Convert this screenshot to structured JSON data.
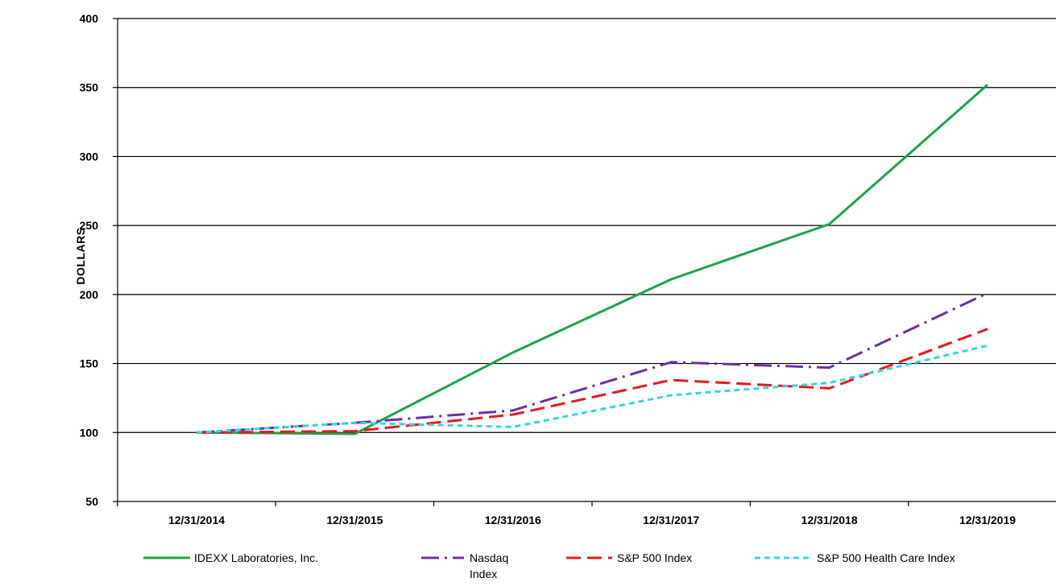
{
  "chart_data": {
    "type": "line",
    "title": "",
    "xlabel": "",
    "ylabel": "DOLLARS",
    "ylim": [
      50,
      400
    ],
    "yticks": [
      50,
      100,
      150,
      200,
      250,
      300,
      350,
      400
    ],
    "categories": [
      "12/31/2014",
      "12/31/2015",
      "12/31/2016",
      "12/31/2017",
      "12/31/2018",
      "12/31/2019"
    ],
    "grid": "horizontal",
    "legend_position": "bottom",
    "series": [
      {
        "name": "IDEXX Laboratories, Inc.",
        "values": [
          100,
          99,
          158,
          211,
          251,
          352
        ],
        "color": "#1aa64a",
        "dash": "solid",
        "legend_lines": [
          "IDEXX Laboratories, Inc."
        ]
      },
      {
        "name": "Nasdaq Index",
        "values": [
          100,
          107,
          116,
          151,
          147,
          201
        ],
        "color": "#7030a0",
        "dash": "dashdot",
        "legend_lines": [
          "Nasdaq",
          "Index"
        ]
      },
      {
        "name": "S&P 500 Index",
        "values": [
          100,
          101,
          113,
          138,
          132,
          175
        ],
        "color": "#e8191c",
        "dash": "dash",
        "legend_lines": [
          "S&P 500 Index"
        ]
      },
      {
        "name": "S&P 500 Health Care Index",
        "values": [
          100,
          107,
          104,
          127,
          136,
          163
        ],
        "color": "#33d6e6",
        "dash": "shortdash",
        "legend_lines": [
          "S&P 500 Health Care Index"
        ]
      }
    ]
  }
}
